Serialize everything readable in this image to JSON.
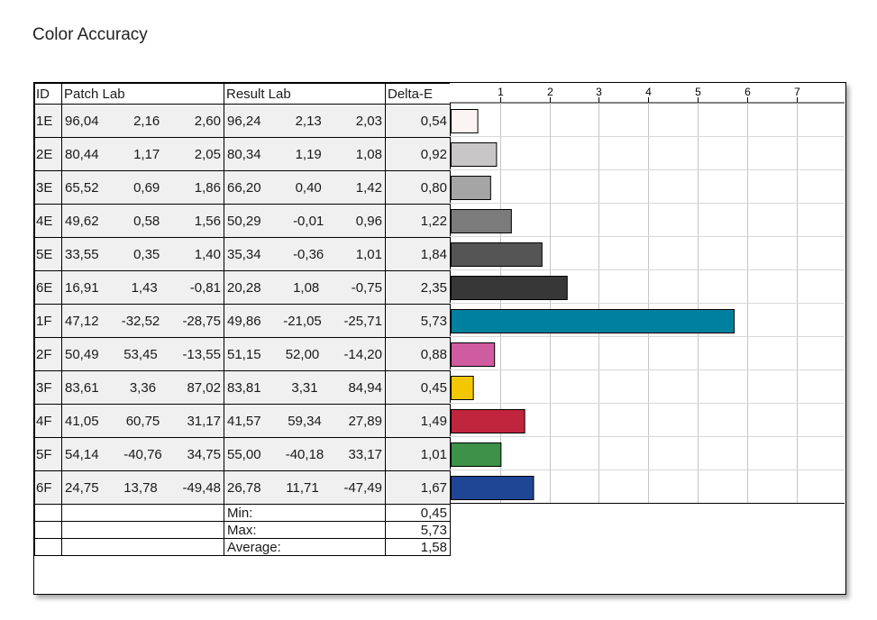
{
  "title": "Color Accuracy",
  "headers": {
    "id": "ID",
    "patch": "Patch Lab",
    "result": "Result Lab",
    "delta": "Delta-E"
  },
  "rows": [
    {
      "id": "1E",
      "patch": [
        "96,04",
        "2,16",
        "2,60"
      ],
      "result": [
        "96,24",
        "2,13",
        "2,03"
      ],
      "delta": "0,54"
    },
    {
      "id": "2E",
      "patch": [
        "80,44",
        "1,17",
        "2,05"
      ],
      "result": [
        "80,34",
        "1,19",
        "1,08"
      ],
      "delta": "0,92"
    },
    {
      "id": "3E",
      "patch": [
        "65,52",
        "0,69",
        "1,86"
      ],
      "result": [
        "66,20",
        "0,40",
        "1,42"
      ],
      "delta": "0,80"
    },
    {
      "id": "4E",
      "patch": [
        "49,62",
        "0,58",
        "1,56"
      ],
      "result": [
        "50,29",
        "-0,01",
        "0,96"
      ],
      "delta": "1,22"
    },
    {
      "id": "5E",
      "patch": [
        "33,55",
        "0,35",
        "1,40"
      ],
      "result": [
        "35,34",
        "-0,36",
        "1,01"
      ],
      "delta": "1,84"
    },
    {
      "id": "6E",
      "patch": [
        "16,91",
        "1,43",
        "-0,81"
      ],
      "result": [
        "20,28",
        "1,08",
        "-0,75"
      ],
      "delta": "2,35"
    },
    {
      "id": "1F",
      "patch": [
        "47,12",
        "-32,52",
        "-28,75"
      ],
      "result": [
        "49,86",
        "-21,05",
        "-25,71"
      ],
      "delta": "5,73"
    },
    {
      "id": "2F",
      "patch": [
        "50,49",
        "53,45",
        "-13,55"
      ],
      "result": [
        "51,15",
        "52,00",
        "-14,20"
      ],
      "delta": "0,88"
    },
    {
      "id": "3F",
      "patch": [
        "83,61",
        "3,36",
        "87,02"
      ],
      "result": [
        "83,81",
        "3,31",
        "84,94"
      ],
      "delta": "0,45"
    },
    {
      "id": "4F",
      "patch": [
        "41,05",
        "60,75",
        "31,17"
      ],
      "result": [
        "41,57",
        "59,34",
        "27,89"
      ],
      "delta": "1,49"
    },
    {
      "id": "5F",
      "patch": [
        "54,14",
        "-40,76",
        "34,75"
      ],
      "result": [
        "55,00",
        "-40,18",
        "33,17"
      ],
      "delta": "1,01"
    },
    {
      "id": "6F",
      "patch": [
        "24,75",
        "13,78",
        "-49,48"
      ],
      "result": [
        "26,78",
        "11,71",
        "-47,49"
      ],
      "delta": "1,67"
    }
  ],
  "summary": [
    {
      "label": "Min:",
      "value": "0,45"
    },
    {
      "label": "Max:",
      "value": "5,73"
    },
    {
      "label": "Average:",
      "value": "1,58"
    }
  ],
  "chart_data": {
    "type": "bar",
    "orientation": "horizontal",
    "categories": [
      "1E",
      "2E",
      "3E",
      "4E",
      "5E",
      "6E",
      "1F",
      "2F",
      "3F",
      "4F",
      "5F",
      "6F"
    ],
    "values": [
      0.54,
      0.92,
      0.8,
      1.22,
      1.84,
      2.35,
      5.73,
      0.88,
      0.45,
      1.49,
      1.01,
      1.67
    ],
    "colors": [
      "#fbf4f2",
      "#c8c6c6",
      "#a5a5a5",
      "#7b7b7b",
      "#555555",
      "#373737",
      "#00809f",
      "#cf5ba0",
      "#f4c800",
      "#c1253d",
      "#3d9148",
      "#1f4694"
    ],
    "xlim": [
      0,
      8
    ],
    "ticks": [
      "1",
      "2",
      "3",
      "4",
      "5",
      "6",
      "7"
    ],
    "grid": true
  }
}
